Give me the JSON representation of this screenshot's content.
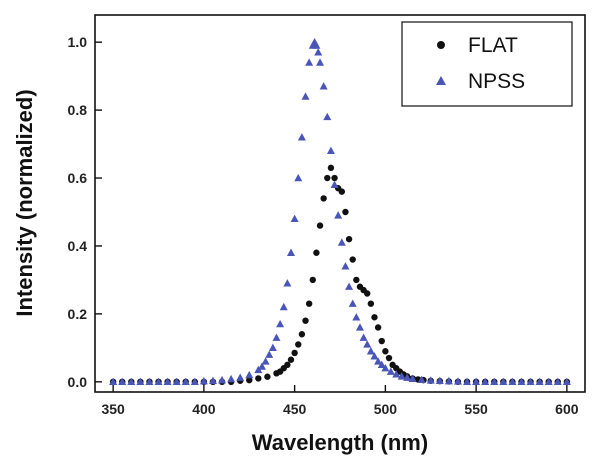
{
  "chart_data": {
    "type": "scatter",
    "xlabel": "Wavelength (nm)",
    "ylabel": "Intensity (normalized)",
    "xlim": [
      340,
      610
    ],
    "ylim": [
      -0.03,
      1.08
    ],
    "x_ticks": [
      "350",
      "400",
      "450",
      "500",
      "550",
      "600"
    ],
    "y_ticks": [
      "0.0",
      "0.2",
      "0.4",
      "0.6",
      "0.8",
      "1.0"
    ],
    "grid": false,
    "legend_position": "top-right",
    "series": [
      {
        "name": "FLAT",
        "marker": "circle",
        "color": "#111111",
        "x": [
          350,
          355,
          360,
          365,
          370,
          375,
          380,
          385,
          390,
          395,
          400,
          405,
          410,
          415,
          420,
          425,
          430,
          435,
          440,
          442,
          444,
          446,
          448,
          450,
          452,
          454,
          456,
          458,
          460,
          462,
          464,
          466,
          468,
          470,
          472,
          474,
          476,
          478,
          480,
          482,
          484,
          486,
          488,
          490,
          492,
          494,
          496,
          498,
          500,
          502,
          504,
          506,
          508,
          510,
          512,
          515,
          518,
          521,
          525,
          530,
          535,
          540,
          545,
          550,
          555,
          560,
          565,
          570,
          575,
          580,
          585,
          590,
          595,
          600
        ],
        "y": [
          0.0,
          0.0,
          0.0,
          0.0,
          0.0,
          0.0,
          0.0,
          0.0,
          0.0,
          0.0,
          0.0,
          0.0,
          0.0,
          0.0,
          0.003,
          0.005,
          0.01,
          0.015,
          0.025,
          0.03,
          0.04,
          0.05,
          0.065,
          0.085,
          0.11,
          0.14,
          0.18,
          0.23,
          0.3,
          0.38,
          0.46,
          0.54,
          0.6,
          0.63,
          0.6,
          0.57,
          0.56,
          0.5,
          0.42,
          0.36,
          0.3,
          0.28,
          0.27,
          0.26,
          0.23,
          0.19,
          0.16,
          0.12,
          0.09,
          0.07,
          0.05,
          0.04,
          0.03,
          0.022,
          0.016,
          0.01,
          0.007,
          0.005,
          0.003,
          0.002,
          0.001,
          0.0,
          0.0,
          0.0,
          0.0,
          0.0,
          0.0,
          0.0,
          0.0,
          0.0,
          0.0,
          0.0,
          0.0,
          0.0
        ]
      },
      {
        "name": "NPSS",
        "marker": "triangle",
        "color": "#4a55b8",
        "x": [
          350,
          355,
          360,
          365,
          370,
          375,
          380,
          385,
          390,
          395,
          400,
          405,
          410,
          415,
          420,
          425,
          430,
          432,
          434,
          436,
          438,
          440,
          442,
          444,
          446,
          448,
          450,
          452,
          454,
          456,
          458,
          460,
          461,
          462,
          463,
          464,
          466,
          468,
          470,
          472,
          474,
          476,
          478,
          480,
          482,
          484,
          486,
          488,
          490,
          492,
          494,
          496,
          498,
          500,
          503,
          506,
          509,
          512,
          515,
          520,
          525,
          530,
          535,
          540,
          545,
          550,
          555,
          560,
          565,
          570,
          575,
          580,
          585,
          590,
          595,
          600
        ],
        "y": [
          0.0,
          0.0,
          0.0,
          0.0,
          0.0,
          0.0,
          0.0,
          0.0,
          0.0,
          0.0,
          0.002,
          0.003,
          0.005,
          0.008,
          0.012,
          0.02,
          0.035,
          0.045,
          0.06,
          0.08,
          0.1,
          0.13,
          0.17,
          0.22,
          0.29,
          0.38,
          0.48,
          0.6,
          0.72,
          0.84,
          0.94,
          0.99,
          1.0,
          0.99,
          0.97,
          0.94,
          0.87,
          0.78,
          0.68,
          0.58,
          0.49,
          0.41,
          0.34,
          0.28,
          0.23,
          0.19,
          0.16,
          0.13,
          0.11,
          0.09,
          0.075,
          0.06,
          0.05,
          0.04,
          0.03,
          0.022,
          0.016,
          0.012,
          0.009,
          0.006,
          0.004,
          0.003,
          0.002,
          0.001,
          0.0,
          0.0,
          0.0,
          0.0,
          0.0,
          0.0,
          0.0,
          0.0,
          0.0,
          0.0,
          0.0,
          0.0
        ]
      }
    ]
  }
}
